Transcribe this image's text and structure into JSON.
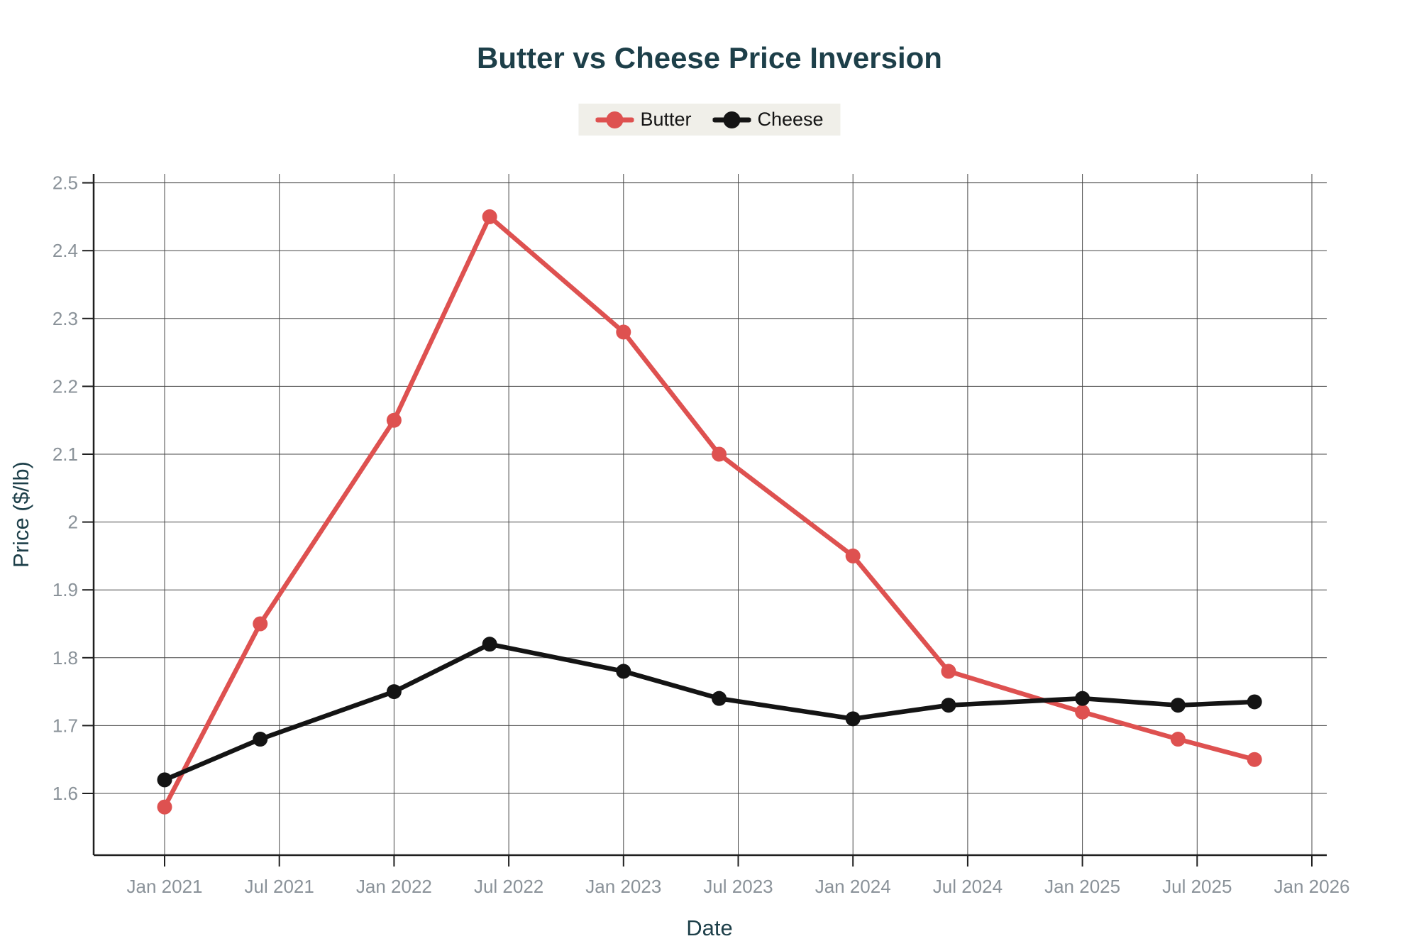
{
  "title": "Butter vs Cheese Price Inversion",
  "colors": {
    "title": "#1d3f49",
    "axis_title": "#1d3f49",
    "tick_label": "#8a9299",
    "gridline": "#474747",
    "axis_line": "#1f1f1f",
    "legend_bg": "#f0efe9",
    "legend_text": "#141414",
    "butter": "#de5150",
    "cheese": "#141414",
    "background": "#ffffff"
  },
  "chart_data": {
    "type": "line",
    "title": "Butter vs Cheese Price Inversion",
    "xlabel": "Date",
    "ylabel": "Price ($/lb)",
    "x": [
      "2021-01",
      "2021-06",
      "2022-01",
      "2022-06",
      "2023-01",
      "2023-06",
      "2024-01",
      "2024-06",
      "2025-01",
      "2025-06",
      "2025-10"
    ],
    "series": [
      {
        "name": "Butter",
        "color": "#de5150",
        "values": [
          1.58,
          1.85,
          2.15,
          2.45,
          2.28,
          2.1,
          1.95,
          1.78,
          1.72,
          1.68,
          1.65
        ]
      },
      {
        "name": "Cheese",
        "color": "#141414",
        "values": [
          1.62,
          1.68,
          1.75,
          1.82,
          1.78,
          1.74,
          1.71,
          1.73,
          1.74,
          1.73,
          1.735
        ]
      }
    ],
    "x_tick_labels": [
      "Jan 2021",
      "Jul 2021",
      "Jan 2022",
      "Jul 2022",
      "Jan 2023",
      "Jul 2023",
      "Jan 2024",
      "Jul 2024",
      "Jan 2025",
      "Jul 2025",
      "Jan 2026"
    ],
    "y_tick_labels": [
      "1.6",
      "1.7",
      "1.8",
      "1.9",
      "2",
      "2.1",
      "2.2",
      "2.3",
      "2.4",
      "2.5"
    ],
    "ylim": [
      1.51,
      2.51
    ],
    "grid": true,
    "legend_position": "top-center"
  }
}
